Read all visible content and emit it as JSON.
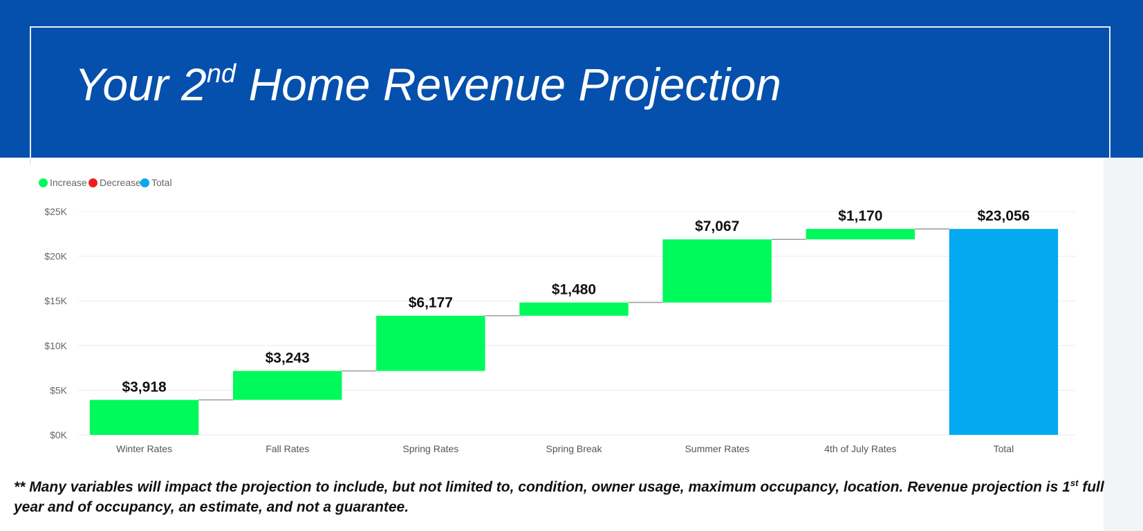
{
  "header": {
    "title_pre": "Your 2",
    "title_sup": "nd",
    "title_post": " Home Revenue Projection"
  },
  "legend": [
    {
      "label": "Increase",
      "color": "#00f95b"
    },
    {
      "label": "Decrease",
      "color": "#ef1d22"
    },
    {
      "label": "Total",
      "color": "#05a9f2"
    }
  ],
  "chart_data": {
    "type": "waterfall",
    "title": "",
    "xlabel": "",
    "ylabel": "",
    "ylim": [
      0,
      25000
    ],
    "yticks": [
      0,
      5000,
      10000,
      15000,
      20000,
      25000
    ],
    "ytick_labels": [
      "$0K",
      "$5K",
      "$10K",
      "$15K",
      "$20K",
      "$25K"
    ],
    "grid": true,
    "legend_position": "top-left",
    "categories": [
      "Winter Rates",
      "Fall Rates",
      "Spring Rates",
      "Spring Break",
      "Summer Rates",
      "4th of July Rates",
      "Total"
    ],
    "values": [
      3918,
      3243,
      6177,
      1480,
      7067,
      1170,
      23056
    ],
    "kinds": [
      "increase",
      "increase",
      "increase",
      "increase",
      "increase",
      "increase",
      "total"
    ],
    "data_labels": [
      "$3,918",
      "$3,243",
      "$6,177",
      "$1,480",
      "$7,067",
      "$1,170",
      "$23,056"
    ],
    "colors": {
      "increase": "#00f95b",
      "decrease": "#ef1d22",
      "total": "#05a9f2"
    }
  },
  "footnote": {
    "stars": "**",
    "part1": " Many variables will impact the projection to include, but not limited to, condition, owner usage, maximum occupancy, location. Revenue projection is 1",
    "sup": "st",
    "part2": " full year and of occupancy, an estimate, and not a guarantee."
  }
}
